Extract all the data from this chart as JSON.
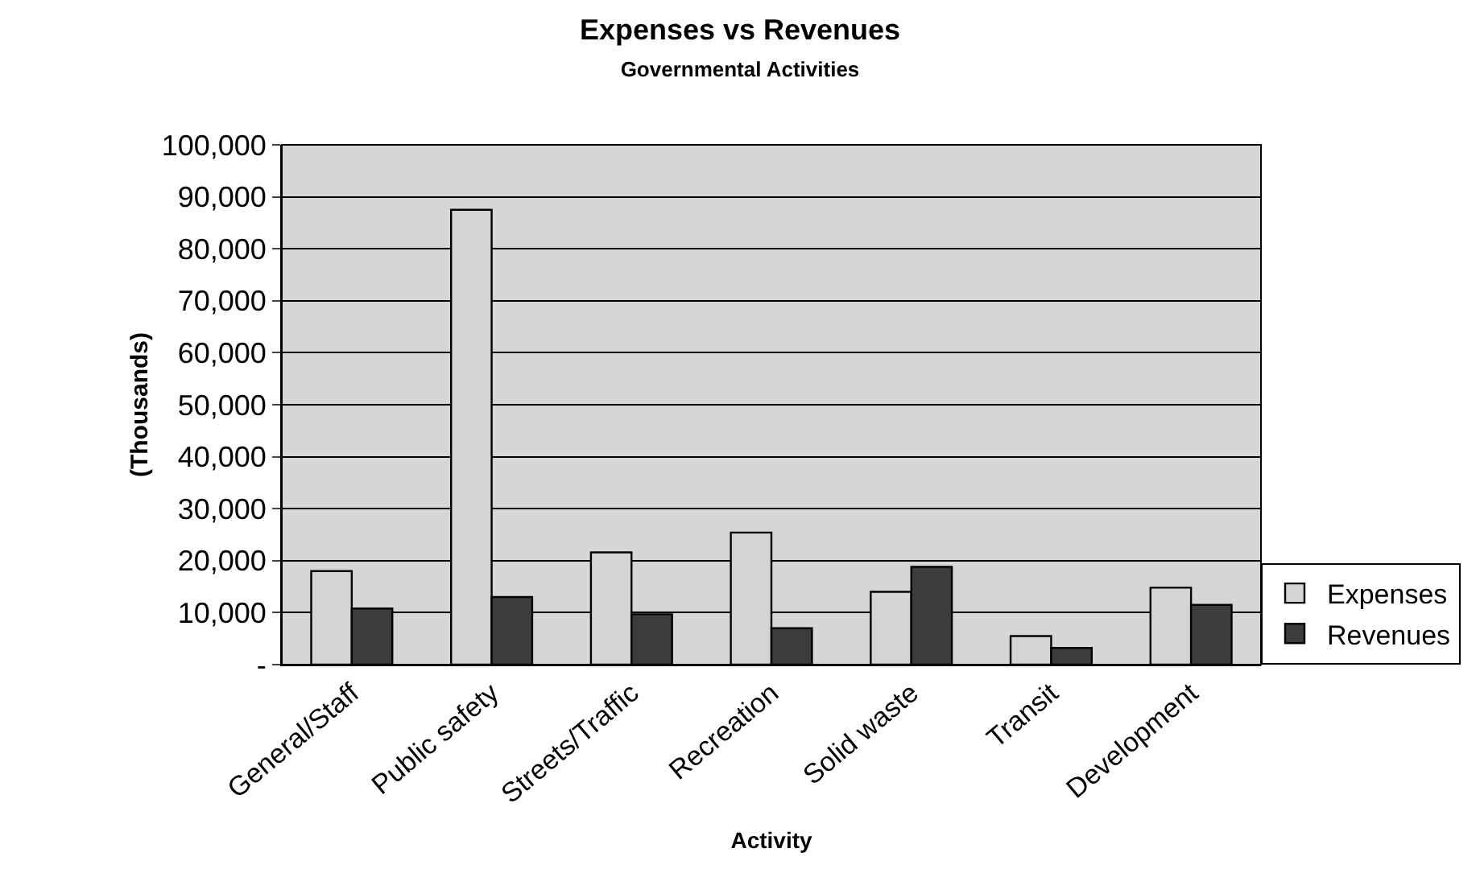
{
  "chart_data": {
    "type": "bar",
    "title": "Expenses vs Revenues",
    "subtitle": "Governmental Activities",
    "xlabel": "Activity",
    "ylabel": "(Thousands)",
    "categories": [
      "General/Staff",
      "Public safety",
      "Streets/Traffic",
      "Recreation",
      "Solid waste",
      "Transit",
      "Development"
    ],
    "series": [
      {
        "name": "Expenses",
        "color": "#d4d4d4",
        "values": [
          18000,
          87500,
          21600,
          25400,
          14000,
          5500,
          14800
        ]
      },
      {
        "name": "Revenues",
        "color": "#3c3c3c",
        "values": [
          10800,
          13000,
          9700,
          7000,
          18800,
          3200,
          11500
        ]
      }
    ],
    "ylim": [
      0,
      100000
    ],
    "yticks": [
      {
        "value": 0,
        "label": "-"
      },
      {
        "value": 10000,
        "label": "10,000"
      },
      {
        "value": 20000,
        "label": "20,000"
      },
      {
        "value": 30000,
        "label": "30,000"
      },
      {
        "value": 40000,
        "label": "40,000"
      },
      {
        "value": 50000,
        "label": "50,000"
      },
      {
        "value": 60000,
        "label": "60,000"
      },
      {
        "value": 70000,
        "label": "70,000"
      },
      {
        "value": 80000,
        "label": "80,000"
      },
      {
        "value": 90000,
        "label": "90,000"
      },
      {
        "value": 100000,
        "label": "100,000"
      }
    ],
    "grid": "y",
    "legend": "bottom right"
  }
}
